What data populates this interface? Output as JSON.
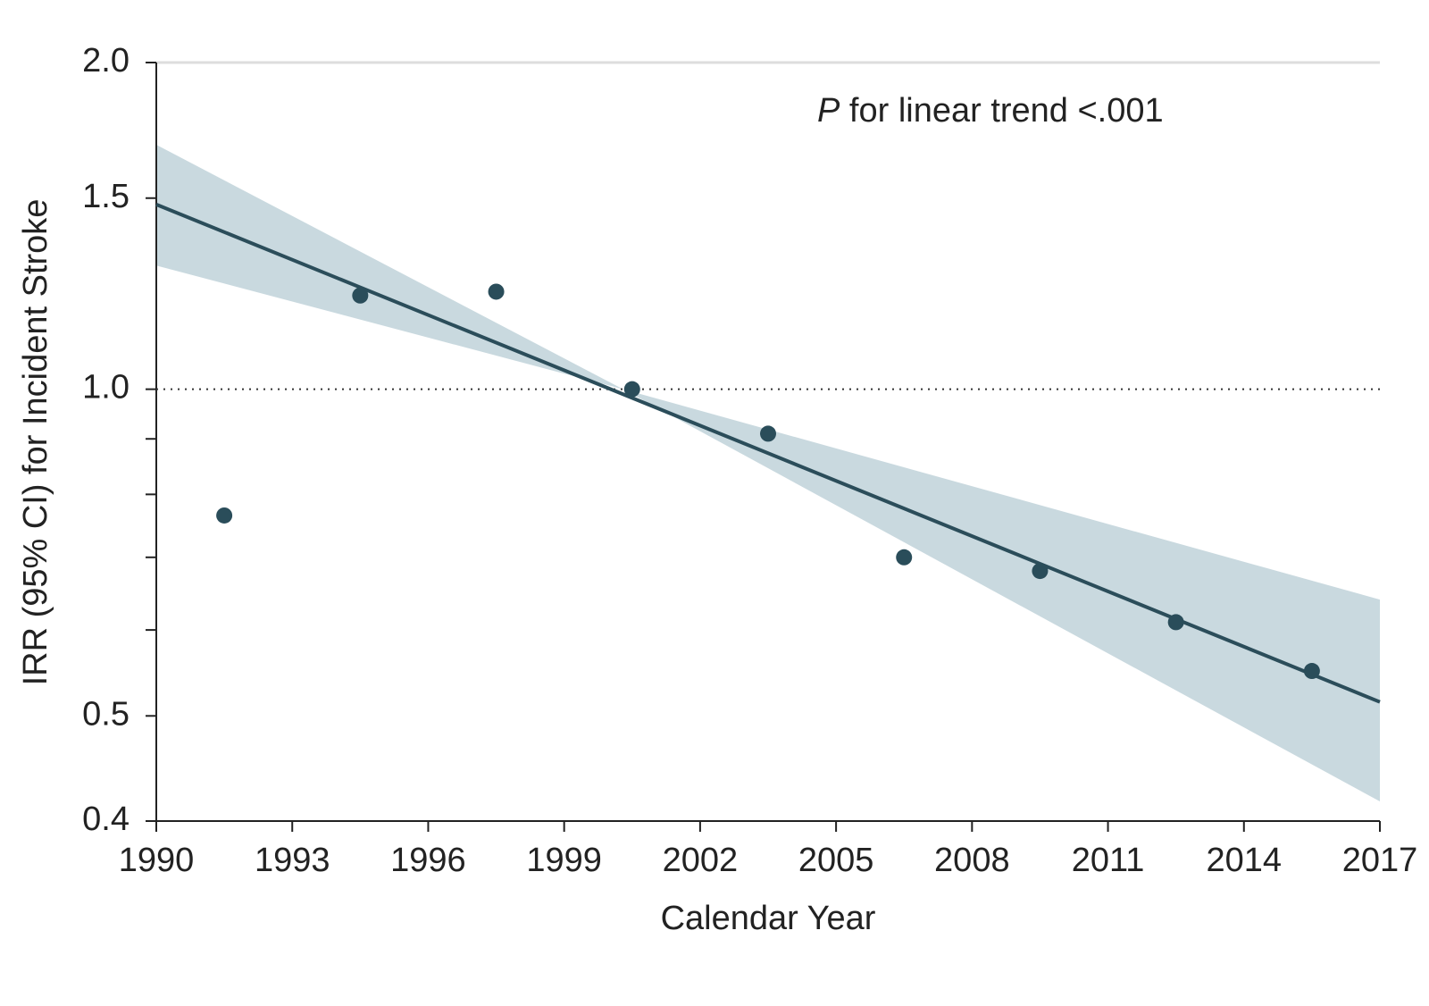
{
  "chart_data": {
    "type": "scatter",
    "x_label": "Calendar Year",
    "y_label": "IRR (95% CI) for Incident Stroke",
    "annotation": {
      "italic": "P",
      "text": "for linear trend <.001"
    },
    "x": [
      1991.5,
      1994.5,
      1997.5,
      2000.5,
      2003.5,
      2006.5,
      2009.5,
      2012.5,
      2015.5
    ],
    "values": [
      0.765,
      1.22,
      1.23,
      1.0,
      0.91,
      0.7,
      0.68,
      0.61,
      0.55
    ],
    "color": "#2a4d5a",
    "trend": {
      "x": [
        1990,
        2017
      ],
      "values": [
        1.48,
        0.515
      ],
      "color": "#2b4d5a"
    },
    "band": {
      "x": [
        1990,
        2000.3,
        2017
      ],
      "upper": [
        1.68,
        1.0,
        0.64
      ],
      "lower": [
        1.3,
        1.0,
        0.417
      ],
      "color": "#c9d9df"
    },
    "reference_line": 1.0,
    "xlim": [
      1990,
      2017
    ],
    "xticks": [
      1990,
      1993,
      1996,
      1999,
      2002,
      2005,
      2008,
      2011,
      2014,
      2017
    ],
    "ylim": [
      0.4,
      2.0
    ],
    "yscale": "log",
    "yticks": [
      0.4,
      0.5,
      {
        "value": 1,
        "label": "1.0"
      },
      1.5,
      {
        "value": 2,
        "label": "2.0"
      }
    ],
    "yminor_ticks": [
      0.6,
      0.7,
      0.8,
      0.9
    ]
  }
}
